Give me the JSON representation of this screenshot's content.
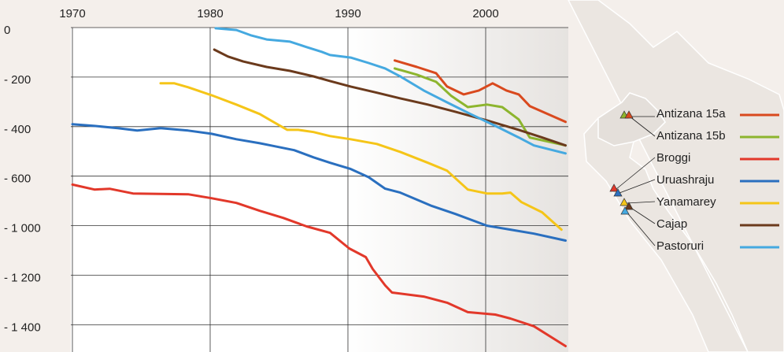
{
  "chart_data": {
    "type": "line",
    "xlim": [
      1970,
      2006
    ],
    "xticks": [
      1970,
      1980,
      1990,
      2000
    ],
    "ylim": [
      -1510,
      0
    ],
    "yticks": [
      0,
      {
        "value": -200,
        "label": "- 200"
      },
      {
        "value": -400,
        "label": "- 400"
      },
      {
        "value": -600,
        "label": "- 600"
      },
      {
        "value": -1000,
        "label": "- 1 000"
      },
      {
        "value": -1200,
        "label": "- 1 200"
      },
      {
        "value": -1400,
        "label": "- 1 400"
      }
    ],
    "grid": true,
    "legend": "right",
    "series": [
      {
        "name": "Antizana 15a",
        "color": "#d9491e",
        "x": [
          1993.4,
          1995,
          1996.4,
          1997.2,
          1998.4,
          1999.5,
          2000.5,
          2001.5,
          2002.4,
          2003.2,
          2005.8
        ],
        "values": [
          -133,
          -159,
          -184,
          -238,
          -270,
          -254,
          -225,
          -254,
          -270,
          -317,
          -381
        ]
      },
      {
        "name": "Antizana 15b",
        "color": "#8db52e",
        "x": [
          1993.4,
          1995,
          1996.4,
          1997.5,
          1998.7,
          2000.1,
          2001.2,
          2002.4,
          2003.2,
          2005.8
        ],
        "values": [
          -165,
          -190,
          -219,
          -276,
          -321,
          -311,
          -321,
          -371,
          -444,
          -476
        ]
      },
      {
        "name": "Broggi",
        "color": "#e2382a",
        "x": [
          1970,
          1971.6,
          1972.7,
          1974.4,
          1978.4,
          1980.1,
          1981.9,
          1983.6,
          1985.3,
          1987,
          1988.7,
          1990.1,
          1991.3,
          1991.8,
          1992.7,
          1993.2,
          1995.5,
          1997.2,
          1998.7,
          2000.7,
          2001.8,
          2003.5,
          2005.8
        ],
        "values": [
          -668,
          -708,
          -702,
          -740,
          -746,
          -778,
          -816,
          -880,
          -937,
          -1003,
          -1029,
          -1092,
          -1127,
          -1175,
          -1241,
          -1270,
          -1286,
          -1311,
          -1349,
          -1359,
          -1375,
          -1406,
          -1486
        ]
      },
      {
        "name": "Uruashraju",
        "color": "#2a6fbf",
        "x": [
          1970,
          1971.6,
          1973.3,
          1974.7,
          1976.4,
          1978.4,
          1980.1,
          1981.9,
          1983.6,
          1984.4,
          1986.1,
          1987.5,
          1988.7,
          1990.2,
          1991.5,
          1992.7,
          1993.8,
          1996.1,
          1997.8,
          2000.1,
          2001.8,
          2003.5,
          2005.8
        ],
        "values": [
          -390,
          -397,
          -406,
          -416,
          -406,
          -416,
          -429,
          -451,
          -467,
          -476,
          -495,
          -524,
          -546,
          -571,
          -608,
          -701,
          -733,
          -841,
          -905,
          -1000,
          -1016,
          -1032,
          -1060
        ]
      },
      {
        "name": "Yanamarey",
        "color": "#f5c518",
        "x": [
          1976.4,
          1977.4,
          1978.4,
          1980.1,
          1981.9,
          1983.6,
          1984.4,
          1985.6,
          1986.4,
          1987.5,
          1988.7,
          1990.2,
          1992.1,
          1993.8,
          1995.8,
          1997.2,
          1998.7,
          2000.1,
          2001.2,
          2001.8,
          2002.6,
          2004.1,
          2005.5
        ],
        "values": [
          -225,
          -225,
          -241,
          -273,
          -311,
          -349,
          -375,
          -413,
          -413,
          -422,
          -438,
          -451,
          -470,
          -502,
          -546,
          -578,
          -708,
          -740,
          -740,
          -733,
          -810,
          -892,
          -1016
        ]
      },
      {
        "name": "Cajap",
        "color": "#6b3a1c",
        "x": [
          1980.3,
          1981.3,
          1982.4,
          1984.1,
          1985.8,
          1987.5,
          1988.7,
          1990.2,
          1992.1,
          1993.8,
          1995.8,
          1997.8,
          2000.1,
          2002.4,
          2004.1,
          2005.8
        ],
        "values": [
          -89,
          -117,
          -137,
          -159,
          -175,
          -197,
          -216,
          -238,
          -263,
          -286,
          -311,
          -340,
          -375,
          -413,
          -444,
          -476
        ]
      },
      {
        "name": "Pastoruri",
        "color": "#45a9e0",
        "x": [
          1980.4,
          1981.9,
          1983,
          1984.1,
          1985.8,
          1987,
          1988.1,
          1988.7,
          1990.2,
          1991.5,
          1992.7,
          1993.8,
          1995.5,
          1997.2,
          1998.9,
          2000.7,
          2002.4,
          2003.5,
          2005.8
        ],
        "values": [
          -3,
          -10,
          -32,
          -48,
          -57,
          -79,
          -98,
          -111,
          -121,
          -143,
          -165,
          -197,
          -254,
          -302,
          -349,
          -397,
          -444,
          -476,
          -508
        ]
      }
    ]
  }
}
